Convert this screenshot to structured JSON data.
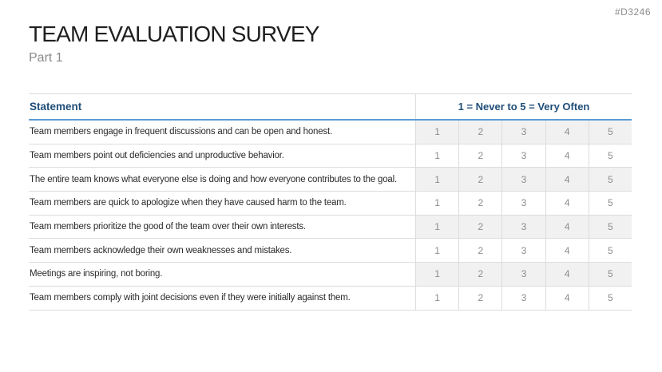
{
  "slide": {
    "code": "#D3246",
    "title": "TEAM EVALUATION SURVEY",
    "subtitle": "Part 1"
  },
  "table": {
    "header": {
      "statement": "Statement",
      "scale": "1 = Never to 5 = Very Often"
    },
    "scale_values": [
      "1",
      "2",
      "3",
      "4",
      "5"
    ],
    "rows": [
      "Team members engage in frequent discussions and can be open and honest.",
      "Team members point out deficiencies and unproductive behavior.",
      "The entire team knows what everyone else is doing and how everyone contributes to the goal.",
      "Team members are quick to apologize when they have caused harm to the team.",
      "Team members prioritize the good of the team over their own interests.",
      "Team members acknowledge their own weaknesses and mistakes.",
      "Meetings are inspiring, not boring.",
      "Team members comply with joint decisions even if they were initially against them."
    ]
  },
  "colors": {
    "accent_blue": "#5B9BD5",
    "header_text_blue": "#1F4E79",
    "row_stripe": "#F1F1F2",
    "table_border": "#DCDCDC",
    "muted_text": "#8C8C8C"
  }
}
